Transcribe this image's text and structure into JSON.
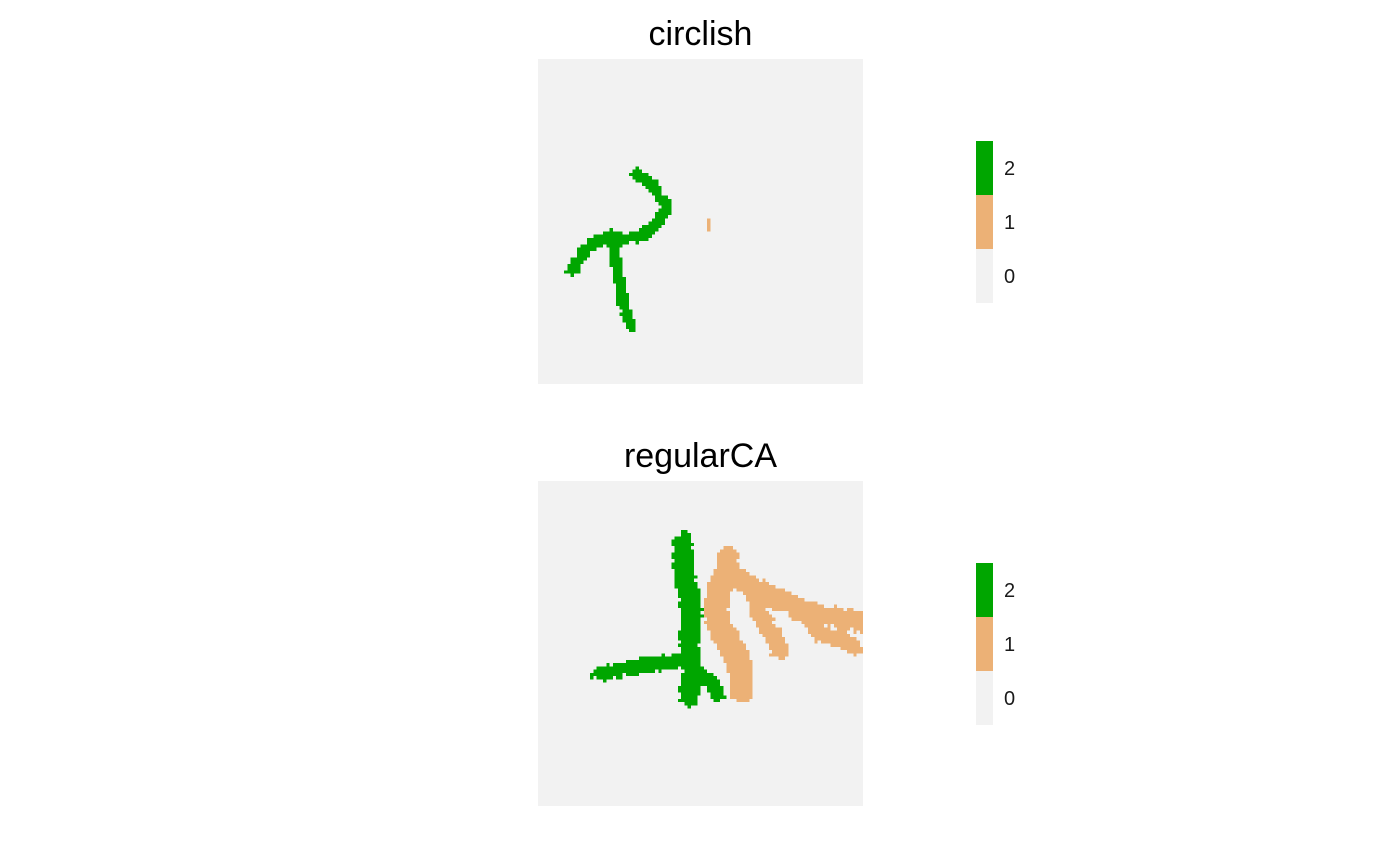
{
  "chart_data": [
    {
      "type": "heatmap",
      "title": "circlish",
      "xlabel": "",
      "ylabel": "",
      "grid": false,
      "legend_position": "right",
      "legend": [
        {
          "value": "2",
          "color": "#00a600"
        },
        {
          "value": "1",
          "color": "#ecb176"
        },
        {
          "value": "0",
          "color": "#f2f2f2"
        }
      ],
      "grid_size": [
        100,
        100
      ],
      "background_value": 0,
      "clusters": [
        {
          "value": 2,
          "path": [
            [
              30,
              35
            ],
            [
              32,
              37
            ],
            [
              35,
              38
            ],
            [
              37,
              42
            ],
            [
              39,
              45
            ],
            [
              37,
              49
            ],
            [
              34,
              52
            ],
            [
              30,
              54
            ],
            [
              26,
              55
            ],
            [
              22,
              54
            ],
            [
              18,
              55
            ],
            [
              14,
              58
            ],
            [
              12,
              61
            ],
            [
              10,
              65
            ]
          ],
          "radius": 1.4
        },
        {
          "value": 2,
          "path": [
            [
              22,
              55
            ],
            [
              23,
              60
            ],
            [
              24,
              65
            ],
            [
              25,
              70
            ],
            [
              26,
              75
            ],
            [
              27,
              79
            ],
            [
              28,
              82
            ]
          ],
          "radius": 1.3
        },
        {
          "value": 1,
          "path": [
            [
              52,
              49
            ],
            [
              52,
              51
            ]
          ],
          "radius": 0.6
        }
      ]
    },
    {
      "type": "heatmap",
      "title": "regularCA",
      "xlabel": "",
      "ylabel": "",
      "grid": false,
      "legend_position": "right",
      "legend": [
        {
          "value": "2",
          "color": "#00a600"
        },
        {
          "value": "1",
          "color": "#ecb176"
        },
        {
          "value": "0",
          "color": "#f2f2f2"
        }
      ],
      "grid_size": [
        100,
        100
      ],
      "background_value": 0,
      "clusters": [
        {
          "value": 1,
          "path": [
            [
              58,
              22
            ],
            [
              58,
              27
            ],
            [
              62,
              30
            ],
            [
              66,
              32
            ],
            [
              70,
              35
            ],
            [
              76,
              37
            ],
            [
              82,
              40
            ],
            [
              88,
              41
            ],
            [
              95,
              42
            ],
            [
              99,
              43
            ]
          ],
          "radius": 2.6
        },
        {
          "value": 1,
          "path": [
            [
              58,
              27
            ],
            [
              55,
              33
            ],
            [
              54,
              40
            ],
            [
              56,
              46
            ],
            [
              60,
              52
            ],
            [
              62,
              58
            ],
            [
              62,
              64
            ]
          ],
          "radius": 3.2
        },
        {
          "value": 1,
          "path": [
            [
              66,
              32
            ],
            [
              67,
              40
            ],
            [
              72,
              47
            ],
            [
              74,
              52
            ]
          ],
          "radius": 2.2
        },
        {
          "value": 1,
          "path": [
            [
              82,
              40
            ],
            [
              86,
              47
            ],
            [
              93,
              48
            ],
            [
              97,
              51
            ]
          ],
          "radius": 2.0
        },
        {
          "value": 2,
          "path": [
            [
              44,
              18
            ],
            [
              44,
              24
            ],
            [
              45,
              30
            ],
            [
              46,
              36
            ],
            [
              47,
              42
            ],
            [
              46,
              48
            ],
            [
              46,
              54
            ],
            [
              47,
              60
            ],
            [
              46,
              66
            ]
          ],
          "radius": 2.6
        },
        {
          "value": 2,
          "path": [
            [
              46,
              54
            ],
            [
              40,
              55
            ],
            [
              34,
              56
            ],
            [
              28,
              57
            ],
            [
              23,
              58
            ],
            [
              18,
              59
            ]
          ],
          "radius": 1.8
        },
        {
          "value": 2,
          "path": [
            [
              46,
              58
            ],
            [
              51,
              60
            ],
            [
              54,
              64
            ],
            [
              55,
              66
            ]
          ],
          "radius": 1.8
        }
      ]
    }
  ]
}
